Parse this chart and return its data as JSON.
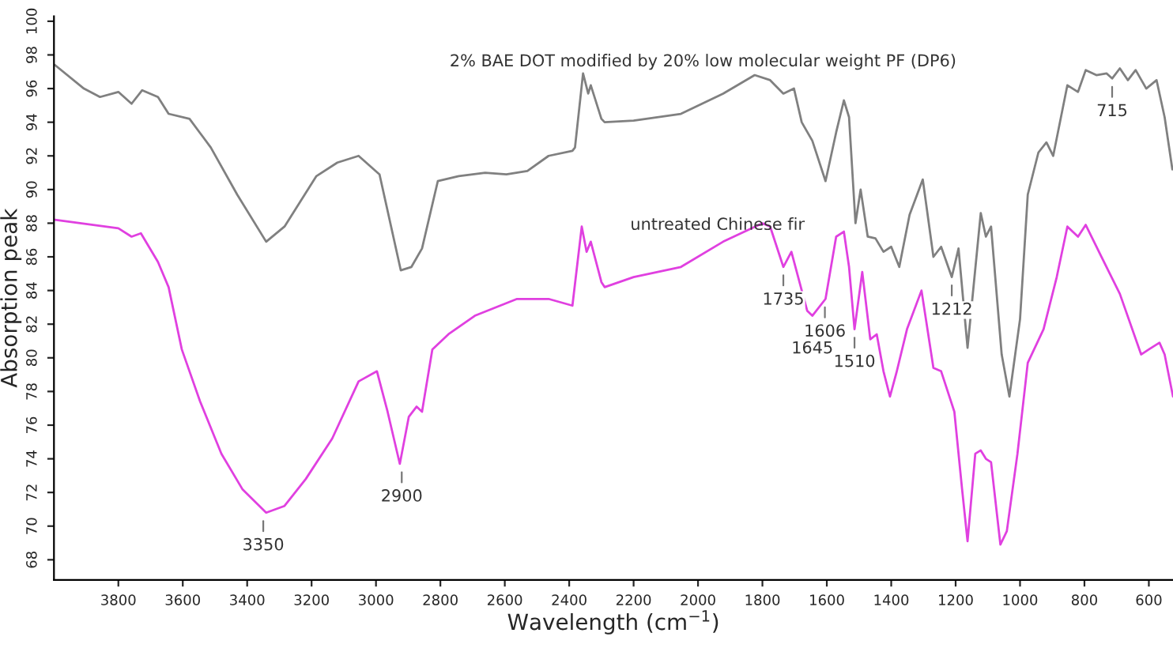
{
  "chart_data": {
    "type": "line",
    "xlabel": "Wavelength (cm$^{−1}$)",
    "ylabel": "Absorption peak",
    "xlim": [
      4000,
      525
    ],
    "ylim": [
      66.8,
      100.3
    ],
    "xticks": [
      3800,
      3600,
      3400,
      3200,
      3000,
      2800,
      2600,
      2400,
      2200,
      2000,
      1800,
      1600,
      1400,
      1200,
      1000,
      800,
      600
    ],
    "yticks": [
      68,
      70,
      72,
      74,
      76,
      78,
      80,
      82,
      84,
      86,
      88,
      90,
      92,
      94,
      96,
      98,
      100
    ],
    "grid": false,
    "legend": false,
    "marker": "none",
    "line_style": "solid",
    "series": [
      {
        "name": "2% BAE DOT modified by 20% low molecular weight PF (DP6)",
        "color": "#808080",
        "x": [
          3997,
          3907,
          3857,
          3800,
          3759,
          3726,
          3677,
          3644,
          3579,
          3513,
          3431,
          3341,
          3284,
          3185,
          3120,
          3054,
          2989,
          2923,
          2890,
          2857,
          2808,
          2743,
          2661,
          2595,
          2530,
          2464,
          2390,
          2382,
          2357,
          2341,
          2333,
          2300,
          2290,
          2200,
          2053,
          1922,
          1824,
          1776,
          1735,
          1702,
          1678,
          1645,
          1604,
          1571,
          1547,
          1531,
          1511,
          1495,
          1473,
          1449,
          1424,
          1400,
          1375,
          1343,
          1302,
          1269,
          1245,
          1212,
          1191,
          1163,
          1122,
          1106,
          1090,
          1057,
          1033,
          1000,
          976,
          943,
          918,
          897,
          853,
          820,
          796,
          763,
          731,
          714,
          690,
          665,
          641,
          608,
          576,
          551,
          527
        ],
        "values": [
          97.4,
          96.0,
          95.5,
          95.8,
          95.1,
          95.9,
          95.5,
          94.5,
          94.2,
          92.5,
          89.7,
          86.9,
          87.8,
          90.8,
          91.6,
          92.0,
          90.9,
          85.2,
          85.4,
          86.5,
          90.5,
          90.8,
          91.0,
          90.9,
          91.1,
          92.0,
          92.3,
          92.5,
          96.9,
          95.7,
          96.2,
          94.2,
          94.0,
          94.1,
          94.5,
          95.7,
          96.8,
          96.5,
          95.7,
          96.0,
          94.0,
          92.9,
          90.5,
          93.4,
          95.3,
          94.3,
          88.0,
          90.0,
          87.2,
          87.1,
          86.3,
          86.6,
          85.4,
          88.5,
          90.6,
          86.0,
          86.6,
          84.8,
          86.5,
          80.6,
          88.6,
          87.2,
          87.8,
          80.2,
          77.7,
          82.3,
          89.7,
          92.2,
          92.8,
          92.0,
          96.2,
          95.8,
          97.1,
          96.8,
          96.9,
          96.6,
          97.2,
          96.5,
          97.1,
          96.0,
          96.5,
          94.3,
          91.2
        ]
      },
      {
        "name": "untreated Chinese fir",
        "color": "#e040e0",
        "x": [
          3997,
          3800,
          3759,
          3730,
          3677,
          3644,
          3603,
          3546,
          3480,
          3415,
          3341,
          3284,
          3218,
          3136,
          3054,
          2997,
          2964,
          2926,
          2898,
          2874,
          2857,
          2825,
          2775,
          2693,
          2562,
          2464,
          2390,
          2361,
          2346,
          2333,
          2300,
          2290,
          2200,
          2053,
          1922,
          1800,
          1776,
          1735,
          1710,
          1661,
          1645,
          1604,
          1571,
          1547,
          1531,
          1514,
          1490,
          1465,
          1445,
          1424,
          1404,
          1384,
          1351,
          1306,
          1269,
          1245,
          1204,
          1180,
          1163,
          1139,
          1122,
          1106,
          1090,
          1061,
          1041,
          1008,
          976,
          927,
          886,
          853,
          820,
          796,
          747,
          690,
          624,
          600,
          567,
          551,
          525
        ],
        "values": [
          88.2,
          87.7,
          87.2,
          87.4,
          85.7,
          84.2,
          80.5,
          77.4,
          74.3,
          72.2,
          70.8,
          71.2,
          72.8,
          75.2,
          78.6,
          79.2,
          76.8,
          73.7,
          76.5,
          77.1,
          76.8,
          80.5,
          81.4,
          82.5,
          83.5,
          83.5,
          83.1,
          87.8,
          86.3,
          86.9,
          84.5,
          84.2,
          84.8,
          85.4,
          86.9,
          88.0,
          87.8,
          85.4,
          86.3,
          82.8,
          82.5,
          83.5,
          87.2,
          87.5,
          85.4,
          81.7,
          85.1,
          81.1,
          81.4,
          79.2,
          77.7,
          79.1,
          81.7,
          84.0,
          79.4,
          79.2,
          76.8,
          72.2,
          69.1,
          74.3,
          74.5,
          74.0,
          73.8,
          68.9,
          69.7,
          74.3,
          79.7,
          81.7,
          84.8,
          87.8,
          87.2,
          87.9,
          86.0,
          83.8,
          80.2,
          80.5,
          80.9,
          80.2,
          77.7
        ]
      }
    ],
    "annotations": [
      {
        "text": "3350",
        "x": 3350,
        "y": 70.8
      },
      {
        "text": "2900",
        "x": 2920,
        "y": 73.7
      },
      {
        "text": "1735",
        "x": 1735,
        "y": 85.4
      },
      {
        "text": "1645",
        "x": 1645,
        "y": 82.5
      },
      {
        "text": "1606",
        "x": 1606,
        "y": 83.5
      },
      {
        "text": "1510",
        "x": 1514,
        "y": 81.7
      },
      {
        "text": "1212",
        "x": 1212,
        "y": 84.8
      },
      {
        "text": "715",
        "x": 714,
        "y": 96.6
      }
    ]
  }
}
